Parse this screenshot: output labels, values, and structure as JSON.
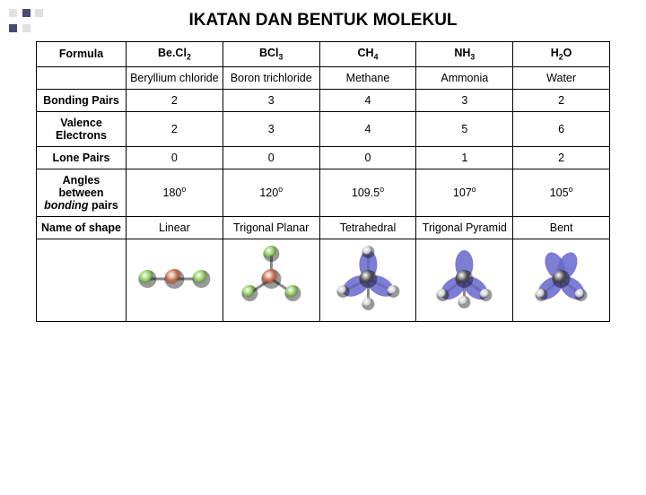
{
  "decor": {
    "square_colors": [
      "#e0e0e0",
      "#4a4a7a",
      "#e0e0e0",
      "#4a4a7a",
      "#e0e0e0"
    ]
  },
  "title": "IKATAN DAN BENTUK MOLEKUL",
  "table": {
    "row_labels": {
      "formula": "Formula",
      "name": "",
      "bonding_pairs": "Bonding Pairs",
      "valence_electrons": "Valence Electrons",
      "lone_pairs": "Lone Pairs",
      "angles": "Angles between bonding pairs",
      "shape": "Name of shape"
    },
    "columns": [
      {
        "formula_html": "Be.Cl<sub>2</sub>",
        "name": "Beryllium chloride",
        "bonding_pairs": "2",
        "valence": "2",
        "lone": "0",
        "angle_html": "180<sup>o</sup>",
        "shape": "Linear",
        "mol": {
          "type": "linear",
          "center": "#cc6644",
          "outer": "#88cc55"
        }
      },
      {
        "formula_html": "BCl<sub>3</sub>",
        "name": "Boron trichloride",
        "bonding_pairs": "3",
        "valence": "3",
        "lone": "0",
        "angle_html": "120<sup>o</sup>",
        "shape": "Trigonal Planar",
        "mol": {
          "type": "trigonal",
          "center": "#ee9933",
          "outer": "#88cc55"
        }
      },
      {
        "formula_html": "CH<sub>4</sub>",
        "name": "Methane",
        "bonding_pairs": "4",
        "valence": "4",
        "lone": "0",
        "angle_html": "109.5<sup>o</sup>",
        "shape": "Tetrahedral",
        "mol": {
          "type": "tetra",
          "center": "#555555",
          "outer": "#cccccc",
          "lobe": "#6666cc"
        }
      },
      {
        "formula_html": "NH<sub>3</sub>",
        "name": "Ammonia",
        "bonding_pairs": "3",
        "valence": "5",
        "lone": "1",
        "angle_html": "107<sup>o</sup>",
        "shape": "Trigonal Pyramid",
        "mol": {
          "type": "pyramid",
          "center": "#339999",
          "outer": "#cccccc",
          "lobe": "#6666cc"
        }
      },
      {
        "formula_html": "H<sub>2</sub>O",
        "name": "Water",
        "bonding_pairs": "2",
        "valence": "6",
        "lone": "2",
        "angle_html": "105<sup>o</sup>",
        "shape": "Bent",
        "mol": {
          "type": "bent",
          "center": "#cc3333",
          "outer": "#cccccc",
          "lobe": "#6666cc"
        }
      }
    ]
  }
}
